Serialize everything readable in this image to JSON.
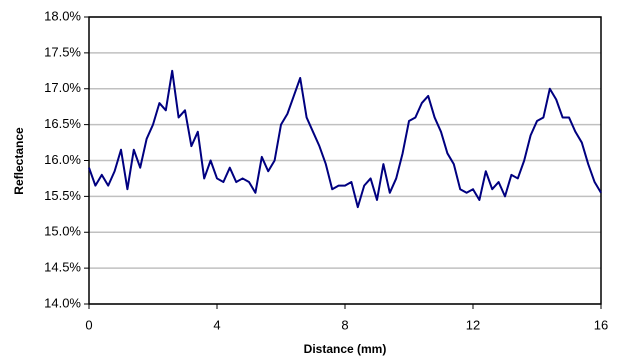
{
  "chart_data": {
    "type": "line",
    "xlabel": "Distance (mm)",
    "ylabel": "Reflectance",
    "x": [
      0,
      0.2,
      0.4,
      0.6,
      0.8,
      1.0,
      1.2,
      1.4,
      1.6,
      1.8,
      2.0,
      2.2,
      2.4,
      2.6,
      2.8,
      3.0,
      3.2,
      3.4,
      3.6,
      3.8,
      4.0,
      4.2,
      4.4,
      4.6,
      4.8,
      5.0,
      5.2,
      5.4,
      5.6,
      5.8,
      6.0,
      6.2,
      6.4,
      6.6,
      6.8,
      7.0,
      7.2,
      7.4,
      7.6,
      7.8,
      8.0,
      8.2,
      8.4,
      8.6,
      8.8,
      9.0,
      9.2,
      9.4,
      9.6,
      9.8,
      10.0,
      10.2,
      10.4,
      10.6,
      10.8,
      11.0,
      11.2,
      11.4,
      11.6,
      11.8,
      12.0,
      12.2,
      12.4,
      12.6,
      12.8,
      13.0,
      13.2,
      13.4,
      13.6,
      13.8,
      14.0,
      14.2,
      14.4,
      14.6,
      14.8,
      15.0,
      15.2,
      15.4,
      15.6,
      15.8,
      16.0
    ],
    "series": [
      {
        "color": "#000080",
        "values": [
          15.9,
          15.65,
          15.8,
          15.65,
          15.85,
          16.15,
          15.6,
          16.15,
          15.9,
          16.3,
          16.5,
          16.8,
          16.7,
          17.25,
          16.6,
          16.7,
          16.2,
          16.4,
          15.75,
          16.0,
          15.75,
          15.7,
          15.9,
          15.7,
          15.75,
          15.7,
          15.55,
          16.05,
          15.85,
          16.0,
          16.5,
          16.65,
          16.9,
          17.15,
          16.6,
          16.4,
          16.2,
          15.95,
          15.6,
          15.65,
          15.65,
          15.7,
          15.35,
          15.65,
          15.75,
          15.45,
          15.95,
          15.55,
          15.75,
          16.1,
          16.55,
          16.6,
          16.8,
          16.9,
          16.6,
          16.4,
          16.1,
          15.95,
          15.6,
          15.55,
          15.6,
          15.45,
          15.85,
          15.6,
          15.7,
          15.5,
          15.8,
          15.75,
          16.0,
          16.35,
          16.55,
          16.6,
          17.0,
          16.85,
          16.6,
          16.6,
          16.4,
          16.25,
          15.95,
          15.7,
          15.55
        ]
      }
    ],
    "xlim": [
      0,
      16
    ],
    "xticks": [
      0,
      4,
      8,
      12,
      16
    ],
    "ylim": [
      14,
      18
    ],
    "yticks": [
      {
        "value": 14,
        "label": "14.0%"
      },
      {
        "value": 14.5,
        "label": "14.5%"
      },
      {
        "value": 15,
        "label": "15.0%"
      },
      {
        "value": 15.5,
        "label": "15.5%"
      },
      {
        "value": 16,
        "label": "16.0%"
      },
      {
        "value": 16.5,
        "label": "16.5%"
      },
      {
        "value": 17,
        "label": "17.0%"
      },
      {
        "value": 17.5,
        "label": "17.5%"
      },
      {
        "value": 18,
        "label": "18.0%"
      }
    ],
    "grid": true
  }
}
